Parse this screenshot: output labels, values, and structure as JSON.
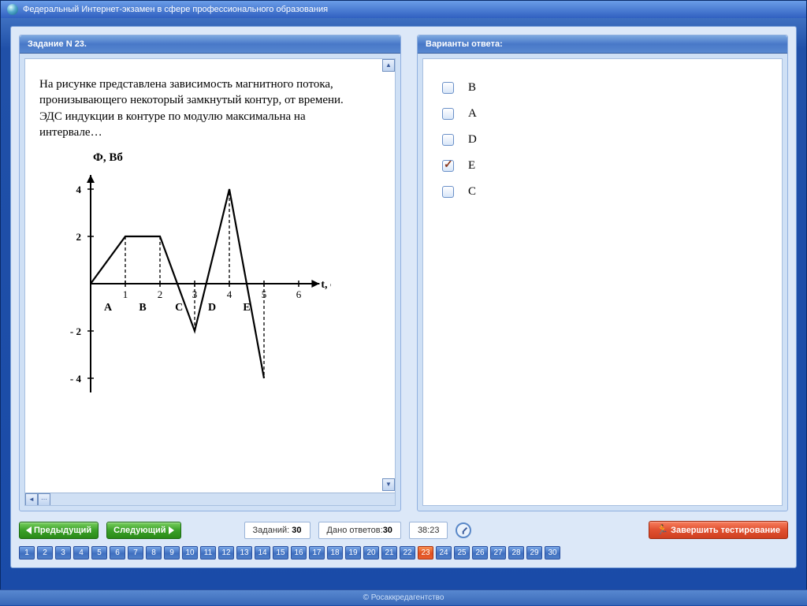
{
  "window": {
    "title": "Федеральный Интернет-экзамен в сфере профессионального образования"
  },
  "question_panel": {
    "header": "Задание N 23."
  },
  "answers_panel": {
    "header": "Варианты ответа:"
  },
  "question": {
    "text": "На рисунке представлена зависимость магнитного потока, пронизывающего некоторый замкнутый контур, от времени. ЭДС индукции в контуре по модулю максимальна на интервале…"
  },
  "chart": {
    "type": "line",
    "y_label": "Ф, Вб",
    "x_label": "t, с",
    "xlim": [
      0,
      6.6
    ],
    "ylim": [
      -4.6,
      4.6
    ],
    "x_ticks": [
      1,
      2,
      3,
      4,
      5,
      6
    ],
    "y_ticks": [
      -4,
      -2,
      2,
      4
    ],
    "dashed_x": [
      1,
      2,
      3,
      4,
      5
    ],
    "points": [
      {
        "x": 0,
        "y": 0
      },
      {
        "x": 1,
        "y": 2
      },
      {
        "x": 2,
        "y": 2
      },
      {
        "x": 3,
        "y": -2
      },
      {
        "x": 4,
        "y": 4
      },
      {
        "x": 5,
        "y": -4
      }
    ],
    "interval_labels": [
      {
        "label": "A",
        "x": 0.5
      },
      {
        "label": "B",
        "x": 1.5
      },
      {
        "label": "C",
        "x": 2.55
      },
      {
        "label": "D",
        "x": 3.5
      },
      {
        "label": "E",
        "x": 4.5
      }
    ],
    "stroke_color": "#000000",
    "stroke_width": 2.2,
    "axis_color": "#000000",
    "dash_pattern": "4,3",
    "background_color": "#ffffff",
    "label_fontsize": 14,
    "tick_fontsize": 13
  },
  "answers": [
    {
      "label": "B",
      "checked": false
    },
    {
      "label": "A",
      "checked": false
    },
    {
      "label": "D",
      "checked": false
    },
    {
      "label": "E",
      "checked": true
    },
    {
      "label": "C",
      "checked": false
    }
  ],
  "toolbar": {
    "prev": "Предыдущий",
    "next": "Следующий",
    "tasks_label": "Заданий:",
    "tasks_count": "30",
    "answered_label": "Дано ответов:",
    "answered_count": "30",
    "timer": "38:23",
    "finish": "Завершить тестирование"
  },
  "nav": {
    "count": 30,
    "current": 23
  },
  "footer": {
    "text": "© Росаккредагентство"
  }
}
